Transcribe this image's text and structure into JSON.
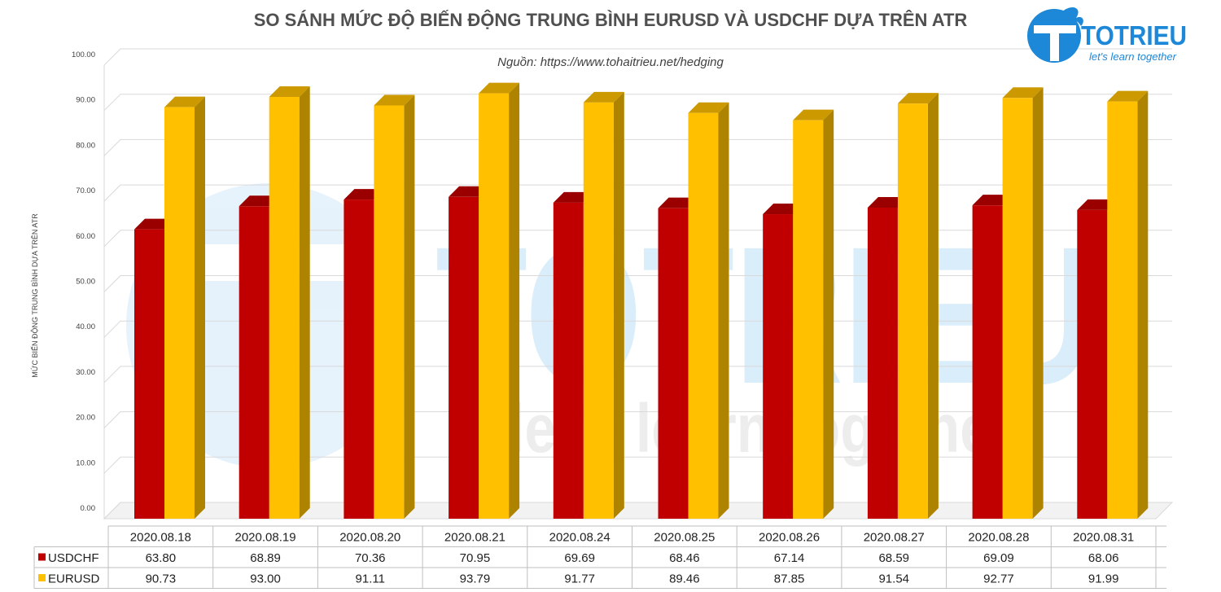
{
  "chart_data": {
    "type": "bar",
    "title": "SO SÁNH MỨC ĐỘ BIẾN ĐỘNG TRUNG BÌNH EURUSD VÀ USDCHF DỰA TRÊN ATR",
    "subtitle": "Nguồn: https://www.tohaitrieu.net/hedging",
    "xlabel": "",
    "ylabel": "MỨC BIẾN ĐỘNG TRUNG BÌNH DỰA TRÊN ATR",
    "ylim": [
      0,
      100
    ],
    "yticks": [
      "0.00",
      "10.00",
      "20.00",
      "30.00",
      "40.00",
      "50.00",
      "60.00",
      "70.00",
      "80.00",
      "90.00",
      "100.00"
    ],
    "categories": [
      "2020.08.18",
      "2020.08.19",
      "2020.08.20",
      "2020.08.21",
      "2020.08.24",
      "2020.08.25",
      "2020.08.26",
      "2020.08.27",
      "2020.08.28",
      "2020.08.31"
    ],
    "series": [
      {
        "name": "USDCHF",
        "color": "#c00000",
        "values": [
          63.8,
          68.89,
          70.36,
          70.95,
          69.69,
          68.46,
          67.14,
          68.59,
          69.09,
          68.06
        ],
        "labels": [
          "63.80",
          "68.89",
          "70.36",
          "70.95",
          "69.69",
          "68.46",
          "67.14",
          "68.59",
          "69.09",
          "68.06"
        ]
      },
      {
        "name": "EURUSD",
        "color": "#ffc000",
        "values": [
          90.73,
          93.0,
          91.11,
          93.79,
          91.77,
          89.46,
          87.85,
          91.54,
          92.77,
          91.99
        ],
        "labels": [
          "90.73",
          "93.00",
          "91.11",
          "93.79",
          "91.77",
          "89.46",
          "87.85",
          "91.54",
          "92.77",
          "91.99"
        ]
      }
    ],
    "legend": "data-table",
    "grid": true
  },
  "logo": {
    "name": "TOTRIEU",
    "tagline": "let's learn together"
  },
  "watermark": {
    "name": "TOTRIEU",
    "tagline": "let's learn together"
  }
}
